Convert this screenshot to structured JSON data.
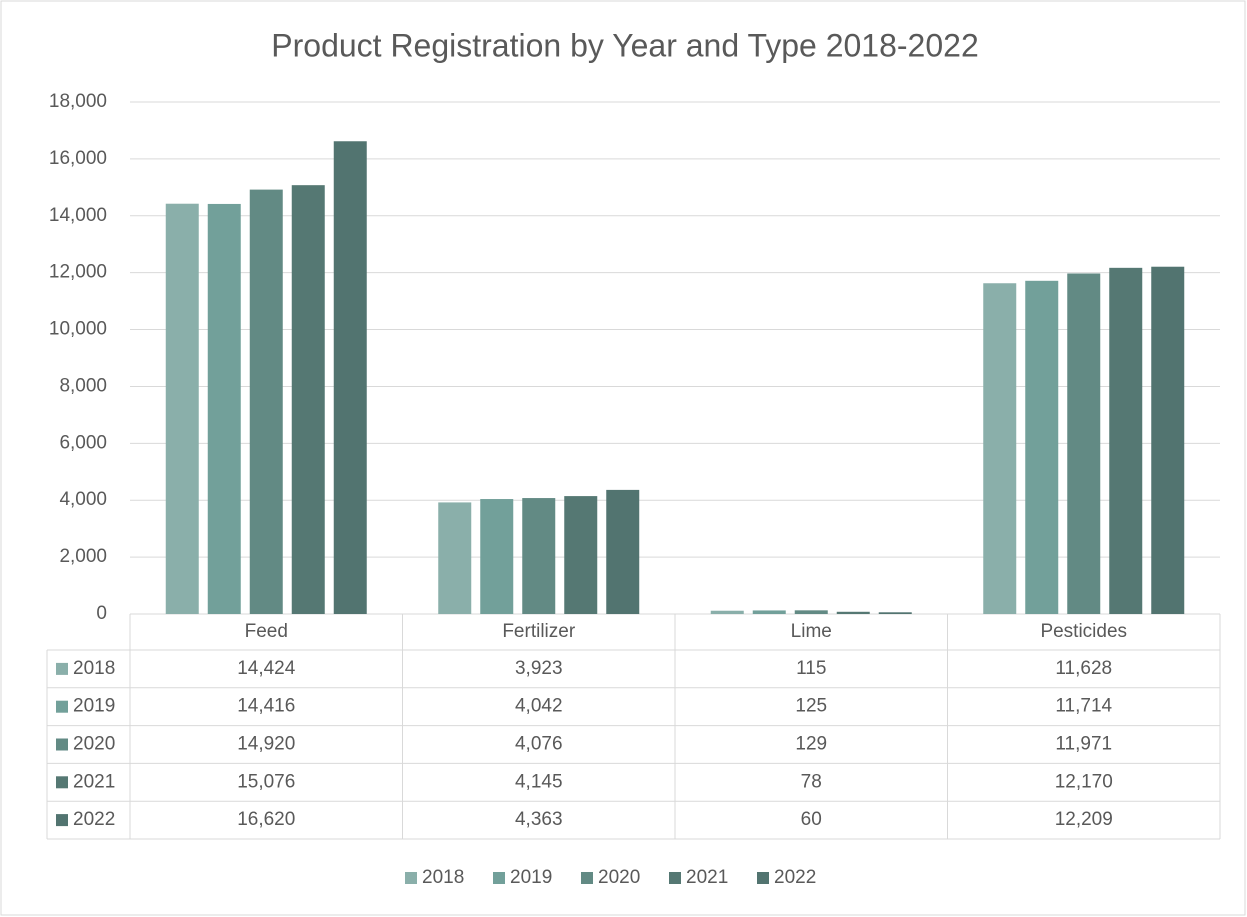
{
  "chart_data": {
    "type": "bar",
    "title": "Product Registration by Year and Type 2018-2022",
    "categories": [
      "Feed",
      "Fertilizer",
      "Lime",
      "Pesticides"
    ],
    "series": [
      {
        "name": "2018",
        "color": "#8AAFAA",
        "values": [
          14424,
          3923,
          115,
          11628
        ],
        "value_labels": [
          "14,424",
          "3,923",
          "115",
          "11,628"
        ]
      },
      {
        "name": "2019",
        "color": "#72A09A",
        "values": [
          14416,
          4042,
          125,
          11714
        ],
        "value_labels": [
          "14,416",
          "4,042",
          "125",
          "11,714"
        ]
      },
      {
        "name": "2020",
        "color": "#628A84",
        "values": [
          14920,
          4076,
          129,
          11971
        ],
        "value_labels": [
          "14,920",
          "4,076",
          "129",
          "11,971"
        ]
      },
      {
        "name": "2021",
        "color": "#557873",
        "values": [
          15076,
          4145,
          78,
          12170
        ],
        "value_labels": [
          "15,076",
          "4,145",
          "78",
          "12,170"
        ]
      },
      {
        "name": "2022",
        "color": "#527470",
        "values": [
          16620,
          4363,
          60,
          12209
        ],
        "value_labels": [
          "16,620",
          "4,363",
          "60",
          "12,209"
        ]
      }
    ],
    "ylim": [
      0,
      18000
    ],
    "yticks": [
      0,
      {
        "value": 2000,
        "label": "2,000"
      },
      {
        "value": 4000,
        "label": "4,000"
      },
      {
        "value": 6000,
        "label": "6,000"
      },
      {
        "value": 8000,
        "label": "8,000"
      },
      {
        "value": 10000,
        "label": "10,000"
      },
      {
        "value": 12000,
        "label": "12,000"
      },
      {
        "value": 14000,
        "label": "14,000"
      },
      {
        "value": 16000,
        "label": "16,000"
      },
      {
        "value": 18000,
        "label": "18,000"
      }
    ],
    "grid": true,
    "legend": "bottom"
  }
}
